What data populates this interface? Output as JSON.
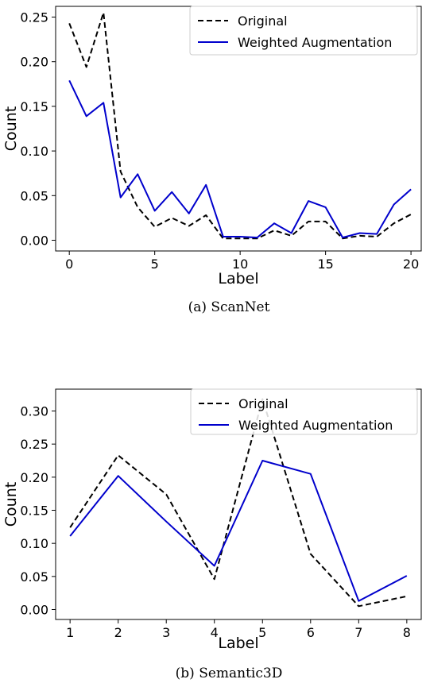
{
  "chart_data": [
    {
      "type": "line",
      "caption": "(a) ScanNet",
      "xlabel": "Label",
      "ylabel": "Count",
      "xlim": [
        -0.8,
        20.6
      ],
      "ylim": [
        -0.012,
        0.262
      ],
      "xticks": [
        0,
        5,
        10,
        15,
        20
      ],
      "xtick_labels": [
        "0",
        "5",
        "10",
        "15",
        "20"
      ],
      "yticks": [
        0.0,
        0.05,
        0.1,
        0.15,
        0.2,
        0.25
      ],
      "ytick_labels": [
        "0.00",
        "0.05",
        "0.10",
        "0.15",
        "0.20",
        "0.25"
      ],
      "grid": false,
      "legend": "top-right",
      "x": [
        0,
        1,
        2,
        3,
        4,
        5,
        6,
        7,
        8,
        9,
        10,
        11,
        12,
        13,
        14,
        15,
        16,
        17,
        18,
        19,
        20
      ],
      "series": [
        {
          "name": "Original",
          "style": "dashed",
          "color": "#000000",
          "values": [
            0.243,
            0.194,
            0.255,
            0.077,
            0.037,
            0.015,
            0.025,
            0.016,
            0.028,
            0.002,
            0.002,
            0.002,
            0.011,
            0.005,
            0.021,
            0.021,
            0.002,
            0.005,
            0.004,
            0.019,
            0.029
          ]
        },
        {
          "name": "Weighted Augmentation",
          "style": "solid",
          "color": "#0000cc",
          "values": [
            0.179,
            0.139,
            0.154,
            0.048,
            0.074,
            0.033,
            0.054,
            0.03,
            0.062,
            0.004,
            0.004,
            0.003,
            0.019,
            0.008,
            0.044,
            0.037,
            0.003,
            0.008,
            0.007,
            0.04,
            0.057
          ]
        }
      ]
    },
    {
      "type": "line",
      "caption": "(b) Semantic3D",
      "xlabel": "Label",
      "ylabel": "Count",
      "xlim": [
        0.7,
        8.3
      ],
      "ylim": [
        -0.015,
        0.333
      ],
      "xticks": [
        1,
        2,
        3,
        4,
        5,
        6,
        7,
        8
      ],
      "xtick_labels": [
        "1",
        "2",
        "3",
        "4",
        "5",
        "6",
        "7",
        "8"
      ],
      "yticks": [
        0.0,
        0.05,
        0.1,
        0.15,
        0.2,
        0.25,
        0.3
      ],
      "ytick_labels": [
        "0.00",
        "0.05",
        "0.10",
        "0.15",
        "0.20",
        "0.25",
        "0.30"
      ],
      "grid": false,
      "legend": "top-right",
      "x": [
        1,
        2,
        3,
        4,
        5,
        6,
        7,
        8
      ],
      "series": [
        {
          "name": "Original",
          "style": "dashed",
          "color": "#000000",
          "values": [
            0.124,
            0.233,
            0.174,
            0.046,
            0.318,
            0.084,
            0.005,
            0.02
          ]
        },
        {
          "name": "Weighted Augmentation",
          "style": "solid",
          "color": "#0000cc",
          "values": [
            0.111,
            0.202,
            0.133,
            0.066,
            0.225,
            0.205,
            0.013,
            0.051
          ]
        }
      ]
    }
  ]
}
